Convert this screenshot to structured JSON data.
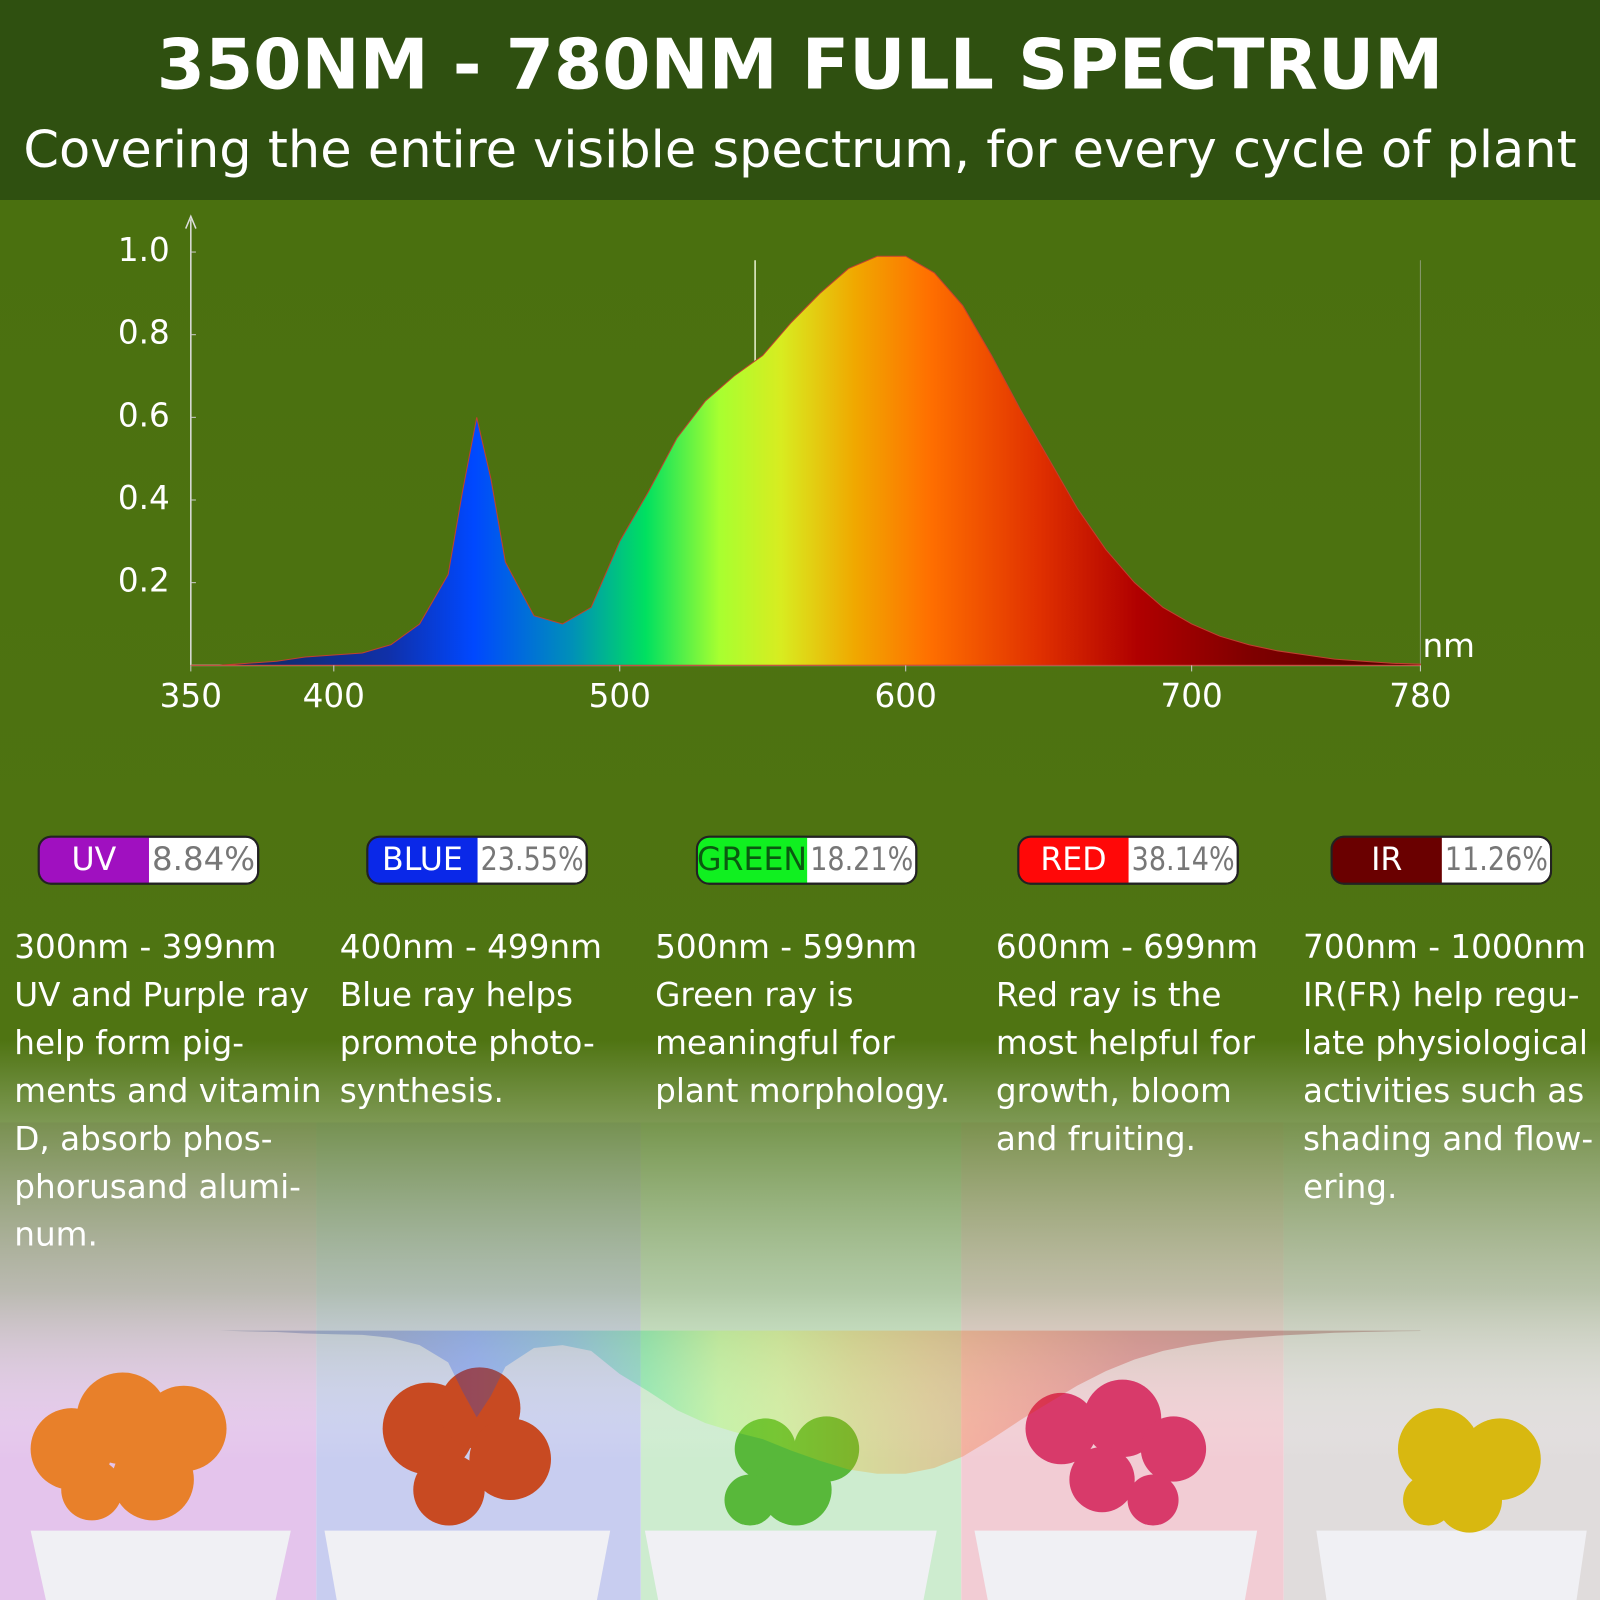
{
  "header": {
    "title": "350NM - 780NM FULL SPECTRUM",
    "subtitle": "Covering the entire visible spectrum, for every cycle of plant"
  },
  "chart_data": {
    "type": "area",
    "x_label": "nm",
    "x": [
      350,
      360,
      370,
      380,
      390,
      400,
      410,
      420,
      430,
      440,
      445,
      450,
      455,
      460,
      470,
      480,
      490,
      500,
      510,
      520,
      530,
      540,
      550,
      560,
      570,
      580,
      590,
      600,
      610,
      620,
      630,
      640,
      650,
      660,
      670,
      680,
      690,
      700,
      710,
      720,
      730,
      740,
      750,
      760,
      770,
      780
    ],
    "values": [
      0,
      0,
      0.005,
      0.01,
      0.02,
      0.025,
      0.03,
      0.05,
      0.1,
      0.22,
      0.42,
      0.6,
      0.45,
      0.25,
      0.12,
      0.1,
      0.14,
      0.3,
      0.42,
      0.55,
      0.64,
      0.7,
      0.75,
      0.83,
      0.9,
      0.96,
      0.99,
      0.99,
      0.95,
      0.87,
      0.75,
      0.62,
      0.5,
      0.38,
      0.28,
      0.2,
      0.14,
      0.1,
      0.07,
      0.05,
      0.035,
      0.025,
      0.015,
      0.01,
      0.005,
      0.003
    ],
    "xlim": [
      350,
      780
    ],
    "xticks": [
      350,
      400,
      500,
      600,
      700,
      780
    ],
    "ylim": [
      0,
      1
    ],
    "yticks": [
      0.2,
      0.4,
      0.6,
      0.8,
      {
        "value": 1,
        "label": "1.0"
      }
    ]
  },
  "bands": [
    {
      "name": "UV",
      "value": 8.84,
      "value_label": "8.84%",
      "color": "#a010c0",
      "lines": [
        "300nm - 399nm",
        "UV and Purple ray",
        "help form pig-",
        "ments and vitamin",
        "D, absorb phos-",
        "phorusand alumi-",
        "num."
      ]
    },
    {
      "name": "BLUE",
      "value": 23.55,
      "value_label": "23.55%",
      "color": "#0a28e8",
      "lines": [
        "400nm - 499nm",
        "Blue ray helps",
        "promote photo-",
        "synthesis."
      ]
    },
    {
      "name": "GREEN",
      "value": 18.21,
      "value_label": "18.21%",
      "color": "#10f020",
      "lines": [
        "500nm - 599nm",
        "Green ray is",
        "meaningful for",
        "plant morphology."
      ]
    },
    {
      "name": "RED",
      "value": 38.14,
      "value_label": "38.14%",
      "color": "#ff0808",
      "lines": [
        "600nm - 699nm",
        "Red ray is the",
        "most helpful for",
        "growth, bloom",
        "and fruiting."
      ]
    },
    {
      "name": "IR",
      "value": 11.26,
      "value_label": "11.26%",
      "color": "#6a0000",
      "lines": [
        "700nm - 1000nm",
        "IR(FR) help regu-",
        "late physiological",
        "activities such as",
        "shading and flow-",
        "ering."
      ]
    }
  ]
}
